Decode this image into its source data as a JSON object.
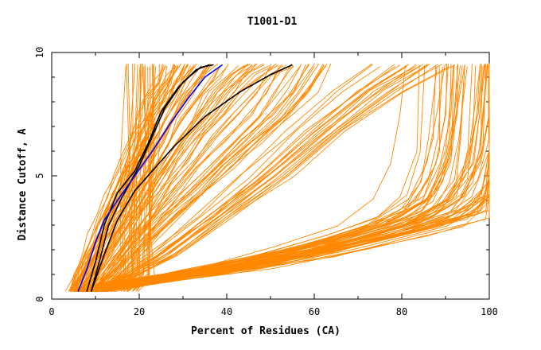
{
  "chart_data": {
    "type": "line",
    "title": "T1001-D1",
    "xlabel": "Percent of Residues (CA)",
    "ylabel": "Distance Cutoff, A",
    "xlim": [
      0,
      100
    ],
    "ylim": [
      0,
      10
    ],
    "x_ticks": [
      "0",
      "20",
      "40",
      "60",
      "80",
      "100"
    ],
    "y_ticks": [
      "0",
      "5",
      "10"
    ],
    "grid": false,
    "legend": "none",
    "colors": {
      "bulk": "#ff8800",
      "highlight": "#000000",
      "reference": "#0000ff"
    },
    "series_groups": [
      {
        "name": "",
        "color": "#ff8800",
        "count": 180,
        "note_bands": "bulk of models",
        "curves": [
          [
            [
              5,
              0.3
            ],
            [
              7,
              1.0
            ],
            [
              9,
              1.8
            ],
            [
              11,
              2.6
            ],
            [
              13,
              3.4
            ],
            [
              15,
              4.2
            ],
            [
              17,
              5.0
            ],
            [
              19,
              5.8
            ],
            [
              21,
              6.6
            ],
            [
              23,
              7.4
            ],
            [
              25,
              8.1
            ],
            [
              27,
              8.8
            ],
            [
              29,
              9.5
            ]
          ],
          [
            [
              6,
              0.3
            ],
            [
              9,
              1.2
            ],
            [
              12,
              2.2
            ],
            [
              15,
              3.2
            ],
            [
              18,
              4.3
            ],
            [
              21,
              5.3
            ],
            [
              24,
              6.3
            ],
            [
              27,
              7.3
            ],
            [
              30,
              8.2
            ],
            [
              33,
              9.0
            ],
            [
              35,
              9.5
            ]
          ],
          [
            [
              8,
              0.3
            ],
            [
              12,
              1.3
            ],
            [
              16,
              2.4
            ],
            [
              20,
              3.5
            ],
            [
              24,
              4.6
            ],
            [
              28,
              5.6
            ],
            [
              32,
              6.6
            ],
            [
              36,
              7.5
            ],
            [
              40,
              8.4
            ],
            [
              44,
              9.1
            ],
            [
              47,
              9.5
            ]
          ],
          [
            [
              10,
              0.3
            ],
            [
              15,
              1.2
            ],
            [
              20,
              2.2
            ],
            [
              26,
              3.3
            ],
            [
              32,
              4.3
            ],
            [
              38,
              5.4
            ],
            [
              44,
              6.4
            ],
            [
              50,
              7.4
            ],
            [
              55,
              8.4
            ],
            [
              59,
              9.5
            ]
          ],
          [
            [
              7,
              0.3
            ],
            [
              14,
              0.6
            ],
            [
              30,
              1.0
            ],
            [
              50,
              1.6
            ],
            [
              68,
              2.3
            ],
            [
              82,
              3.0
            ],
            [
              92,
              3.6
            ],
            [
              97,
              4.8
            ],
            [
              99,
              6.5
            ],
            [
              100,
              9.5
            ]
          ],
          [
            [
              9,
              0.3
            ],
            [
              18,
              0.6
            ],
            [
              36,
              1.1
            ],
            [
              56,
              1.8
            ],
            [
              74,
              2.6
            ],
            [
              87,
              3.3
            ],
            [
              94,
              4.2
            ],
            [
              98,
              6.0
            ],
            [
              99,
              9.5
            ]
          ],
          [
            [
              12,
              0.3
            ],
            [
              22,
              0.7
            ],
            [
              42,
              1.3
            ],
            [
              62,
              2.1
            ],
            [
              80,
              3.0
            ],
            [
              90,
              4.0
            ],
            [
              95,
              5.5
            ],
            [
              97,
              7.5
            ],
            [
              98,
              9.5
            ]
          ],
          [
            [
              16,
              0.3
            ],
            [
              19,
              1.0
            ],
            [
              19,
              3.0
            ],
            [
              20,
              6.0
            ],
            [
              20,
              9.5
            ]
          ],
          [
            [
              10,
              0.3
            ],
            [
              16,
              0.8
            ],
            [
              26,
              1.8
            ],
            [
              38,
              3.4
            ],
            [
              50,
              5.0
            ],
            [
              62,
              6.8
            ],
            [
              74,
              8.4
            ],
            [
              84,
              9.5
            ]
          ]
        ]
      },
      {
        "name": "",
        "color": "#000000",
        "count": 3,
        "curves": [
          [
            [
              8,
              0.3
            ],
            [
              10,
              1.5
            ],
            [
              12,
              3.0
            ],
            [
              15,
              4.3
            ],
            [
              19,
              5.2
            ],
            [
              22,
              6.3
            ],
            [
              25,
              7.6
            ],
            [
              29,
              8.6
            ],
            [
              33,
              9.3
            ],
            [
              36,
              9.5
            ]
          ],
          [
            [
              9,
              0.3
            ],
            [
              11,
              1.6
            ],
            [
              13,
              3.0
            ],
            [
              16,
              4.1
            ],
            [
              20,
              5.4
            ],
            [
              23,
              6.6
            ],
            [
              26,
              7.8
            ],
            [
              30,
              8.8
            ],
            [
              34,
              9.4
            ],
            [
              37,
              9.5
            ]
          ],
          [
            [
              9,
              0.3
            ],
            [
              12,
              1.8
            ],
            [
              15,
              3.2
            ],
            [
              19,
              4.4
            ],
            [
              23,
              5.2
            ],
            [
              28,
              6.2
            ],
            [
              35,
              7.4
            ],
            [
              43,
              8.4
            ],
            [
              50,
              9.1
            ],
            [
              55,
              9.5
            ]
          ]
        ]
      },
      {
        "name": "",
        "color": "#0000ff",
        "count": 1,
        "curves": [
          [
            [
              6,
              0.3
            ],
            [
              8,
              1.2
            ],
            [
              10,
              2.3
            ],
            [
              12,
              3.2
            ],
            [
              15,
              4.0
            ],
            [
              19,
              5.0
            ],
            [
              23,
              6.0
            ],
            [
              27,
              7.1
            ],
            [
              31,
              8.1
            ],
            [
              35,
              9.0
            ],
            [
              39,
              9.5
            ]
          ]
        ]
      }
    ]
  }
}
